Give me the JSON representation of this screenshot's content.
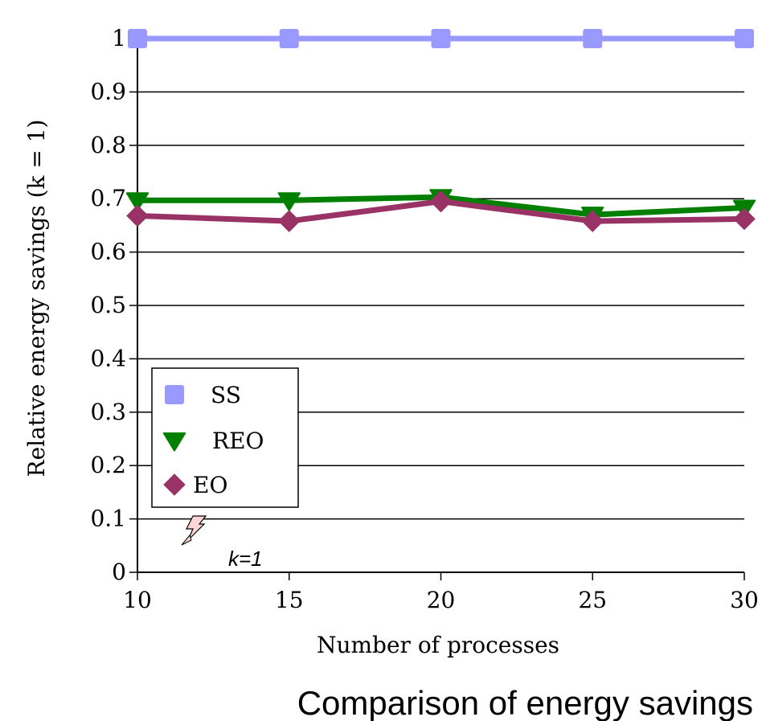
{
  "chart_data": {
    "type": "line",
    "x": [
      10,
      15,
      20,
      25,
      30
    ],
    "xlabel": "Number of processes",
    "ylabel": "Relative energy savings (k = 1)",
    "xlim": [
      10,
      30
    ],
    "ylim": [
      0,
      1
    ],
    "xticks": [
      "10",
      "15",
      "20",
      "25",
      "30"
    ],
    "yticks": [
      "0",
      "0.1",
      "0.2",
      "0.3",
      "0.4",
      "0.5",
      "0.6",
      "0.7",
      "0.8",
      "0.9",
      "1"
    ],
    "grid": "horizontal",
    "legend_position": "lower-left",
    "series": [
      {
        "name": "SS",
        "values": [
          1.0,
          1.0,
          1.0,
          1.0,
          1.0
        ],
        "color": "#9999ff",
        "marker": "square"
      },
      {
        "name": "REO",
        "values": [
          0.697,
          0.697,
          0.703,
          0.67,
          0.683
        ],
        "color": "#007f00",
        "marker": "triangle-down"
      },
      {
        "name": "EO",
        "values": [
          0.668,
          0.658,
          0.695,
          0.658,
          0.662
        ],
        "color": "#993366",
        "marker": "diamond"
      }
    ],
    "annotation": "k=1",
    "caption": "Comparison of energy savings"
  }
}
